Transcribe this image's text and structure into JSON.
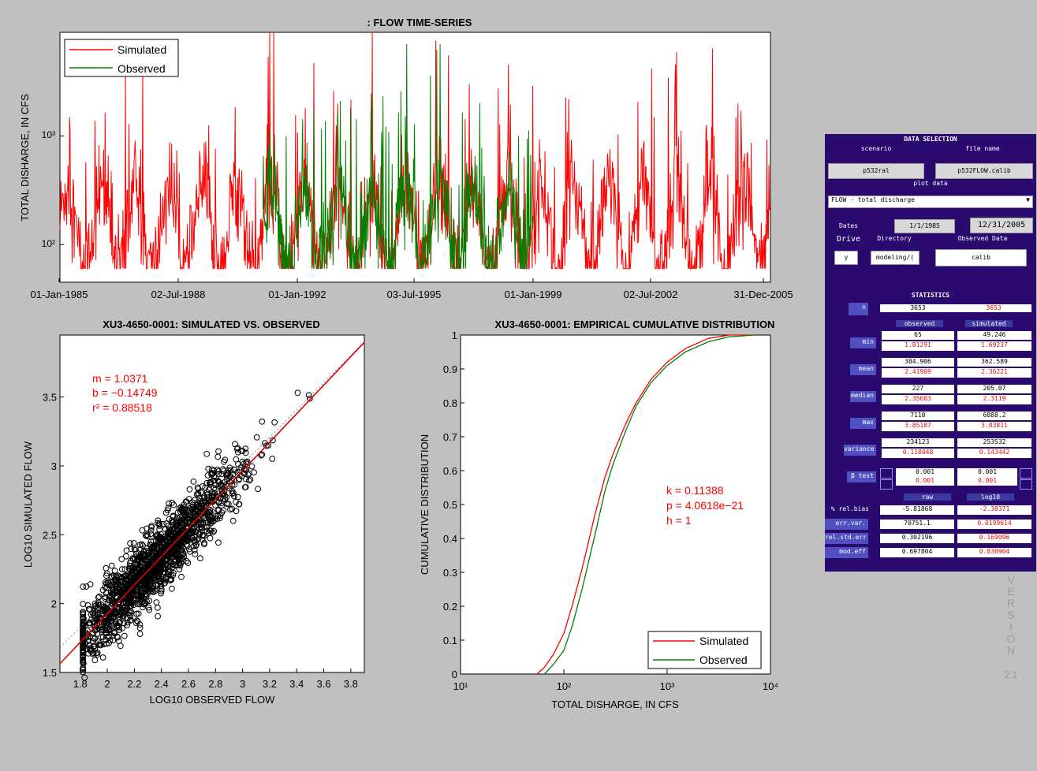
{
  "timeseries": {
    "title": ": FLOW TIME-SERIES",
    "ylabel": "TOTAL DISHARGE, IN CFS",
    "xticks": [
      "01-Jan-1985",
      "02-Jul-1988",
      "01-Jan-1992",
      "03-Jul-1995",
      "01-Jan-1999",
      "02-Jul-2002",
      "31-Dec-2005"
    ],
    "ytick_labels": [
      "10²",
      "10³"
    ],
    "legend": [
      "Simulated",
      "Observed"
    ]
  },
  "scatter": {
    "title": "XU3-4650-0001: SIMULATED VS. OBSERVED",
    "xlabel": "LOG10 OBSERVED FLOW",
    "ylabel": "LOG10 SIMULATED FLOW",
    "xticks": [
      "1.8",
      "2",
      "2.2",
      "2.4",
      "2.6",
      "2.8",
      "3",
      "3.2",
      "3.4",
      "3.6",
      "3.8"
    ],
    "yticks": [
      "1.5",
      "2",
      "2.5",
      "3",
      "3.5"
    ],
    "stats_m": "m = 1.0371",
    "stats_b": "b  = −0.14749",
    "stats_r2": "r² = 0.88518"
  },
  "cdf": {
    "title": "XU3-4650-0001: EMPIRICAL CUMULATIVE DISTRIBUTION",
    "xlabel": "TOTAL DISHARGE, IN CFS",
    "ylabel": "CUMULATIVE DISTRIBUTION",
    "yticks": [
      "0",
      "0.1",
      "0.2",
      "0.3",
      "0.4",
      "0.5",
      "0.6",
      "0.7",
      "0.8",
      "0.9",
      "1"
    ],
    "xticks": [
      "10¹",
      "10²",
      "10³",
      "10⁴"
    ],
    "ks_k": "k = 0.11388",
    "ks_p": "p = 4.0618e−21",
    "ks_h": "h = 1",
    "legend": [
      "Simulated",
      "Observed"
    ]
  },
  "chart_data": [
    {
      "type": "line",
      "title": ": FLOW TIME-SERIES",
      "ylabel": "TOTAL DISHARGE, IN CFS",
      "y_scale": "log",
      "xlim": [
        "1985-01-01",
        "2005-12-31"
      ],
      "ylim": [
        45,
        9000
      ],
      "legend_position": "top-left",
      "series": [
        {
          "name": "Simulated",
          "color": "#ff0000",
          "period": [
            "1985-01-01",
            "2005-12-31"
          ],
          "typical_range": [
            60,
            3000
          ],
          "peak_max": 9000
        },
        {
          "name": "Observed",
          "color": "#008000",
          "period": [
            "1991-01-01",
            "1998-12-31"
          ],
          "typical_range": [
            60,
            2000
          ],
          "peak_max": 7000
        }
      ]
    },
    {
      "type": "scatter",
      "title": "XU3-4650-0001: SIMULATED VS. OBSERVED",
      "xlabel": "LOG10 OBSERVED FLOW",
      "ylabel": "LOG10 SIMULATED FLOW",
      "xlim": [
        1.65,
        3.9
      ],
      "ylim": [
        1.5,
        3.95
      ],
      "fit": {
        "m": 1.0371,
        "b": -0.14749,
        "r2": 0.88518,
        "color": "#e00000"
      },
      "points_n": 3653,
      "cluster_center": [
        2.35,
        2.3
      ]
    },
    {
      "type": "line",
      "title": "XU3-4650-0001: EMPIRICAL CUMULATIVE DISTRIBUTION",
      "xlabel": "TOTAL DISHARGE, IN CFS",
      "ylabel": "CUMULATIVE DISTRIBUTION",
      "x_scale": "log",
      "xlim": [
        10,
        10000
      ],
      "ylim": [
        0,
        1
      ],
      "legend_position": "bottom-right",
      "ks_test": {
        "k": 0.11388,
        "p": "4.0618e-21",
        "h": 1
      },
      "series": [
        {
          "name": "Simulated",
          "color": "#ff0000",
          "x": [
            55,
            65,
            80,
            100,
            120,
            150,
            200,
            250,
            300,
            400,
            500,
            700,
            1000,
            1500,
            2500,
            4000,
            7000
          ],
          "y": [
            0,
            0.02,
            0.06,
            0.12,
            0.2,
            0.31,
            0.47,
            0.58,
            0.65,
            0.74,
            0.8,
            0.87,
            0.92,
            0.96,
            0.99,
            1.0,
            1.0
          ]
        },
        {
          "name": "Observed",
          "color": "#008000",
          "x": [
            65,
            80,
            100,
            120,
            150,
            200,
            250,
            300,
            400,
            500,
            700,
            1000,
            1500,
            2500,
            4000,
            7110
          ],
          "y": [
            0,
            0.03,
            0.07,
            0.14,
            0.25,
            0.41,
            0.54,
            0.62,
            0.72,
            0.79,
            0.86,
            0.91,
            0.95,
            0.98,
            0.995,
            1.0
          ]
        }
      ]
    }
  ],
  "panel": {
    "title": "DATA SELECTION",
    "scenario_label": "scenario",
    "filename_label": "file name",
    "scenario_value": "p532ral",
    "filename_value": "p532FLOW.calib",
    "plotdata_label": "plot data",
    "plotdata_value": "FLOW - total discharge",
    "dates_label": "Dates",
    "date_start": "1/1/1985",
    "date_end": "12/31/2005",
    "drive_label": "Drive",
    "directory_label": "Directory",
    "observed_label": "Observed Data",
    "drive_value": "y",
    "directory_value": "modeling/(",
    "observed_value": "calib",
    "stats_title": "STATISTICS",
    "n_label": "n",
    "n_obs": "3653",
    "n_sim": "3653",
    "col_observed": "observed",
    "col_simulated": "simulated",
    "rows": [
      {
        "label": "min",
        "obs": "65",
        "obs_log": "1.81291",
        "sim": "49.246",
        "sim_log": "1.69237"
      },
      {
        "label": "mean",
        "obs": "384.906",
        "obs_log": "2.41909",
        "sim": "362.589",
        "sim_log": "2.36221"
      },
      {
        "label": "median",
        "obs": "227",
        "obs_log": "2.35603",
        "sim": "205.07",
        "sim_log": "2.3119"
      },
      {
        "label": "max",
        "obs": "7110",
        "obs_log": "3.85187",
        "sim": "6888.2",
        "sim_log": "3.83811"
      },
      {
        "label": "variance",
        "obs": "234123",
        "obs_log": "0.118048",
        "sim": "253532",
        "sim_log": "0.143442"
      }
    ],
    "beta_label": "β test",
    "beta_obs_1": "0.001",
    "beta_obs_2": "0.001",
    "beta_sim_1": "0.001",
    "beta_sim_2": "0.001",
    "col_raw": "raw",
    "col_log10": "log10",
    "err_rows": [
      {
        "label": "% rel.bias",
        "raw": "-5.81868",
        "log": "-2.38371"
      },
      {
        "label": "err.var.",
        "raw": "70751.1",
        "log": "0.0199614"
      },
      {
        "label": "rel.std.err",
        "raw": "0.302196",
        "log": "0.169096"
      },
      {
        "label": "mod.eff",
        "raw": "0.697804",
        "log": "0.830904"
      }
    ]
  },
  "version": {
    "letters": [
      "V",
      "E",
      "R",
      "S",
      "I",
      "O",
      "N"
    ],
    "number": "2.1"
  }
}
